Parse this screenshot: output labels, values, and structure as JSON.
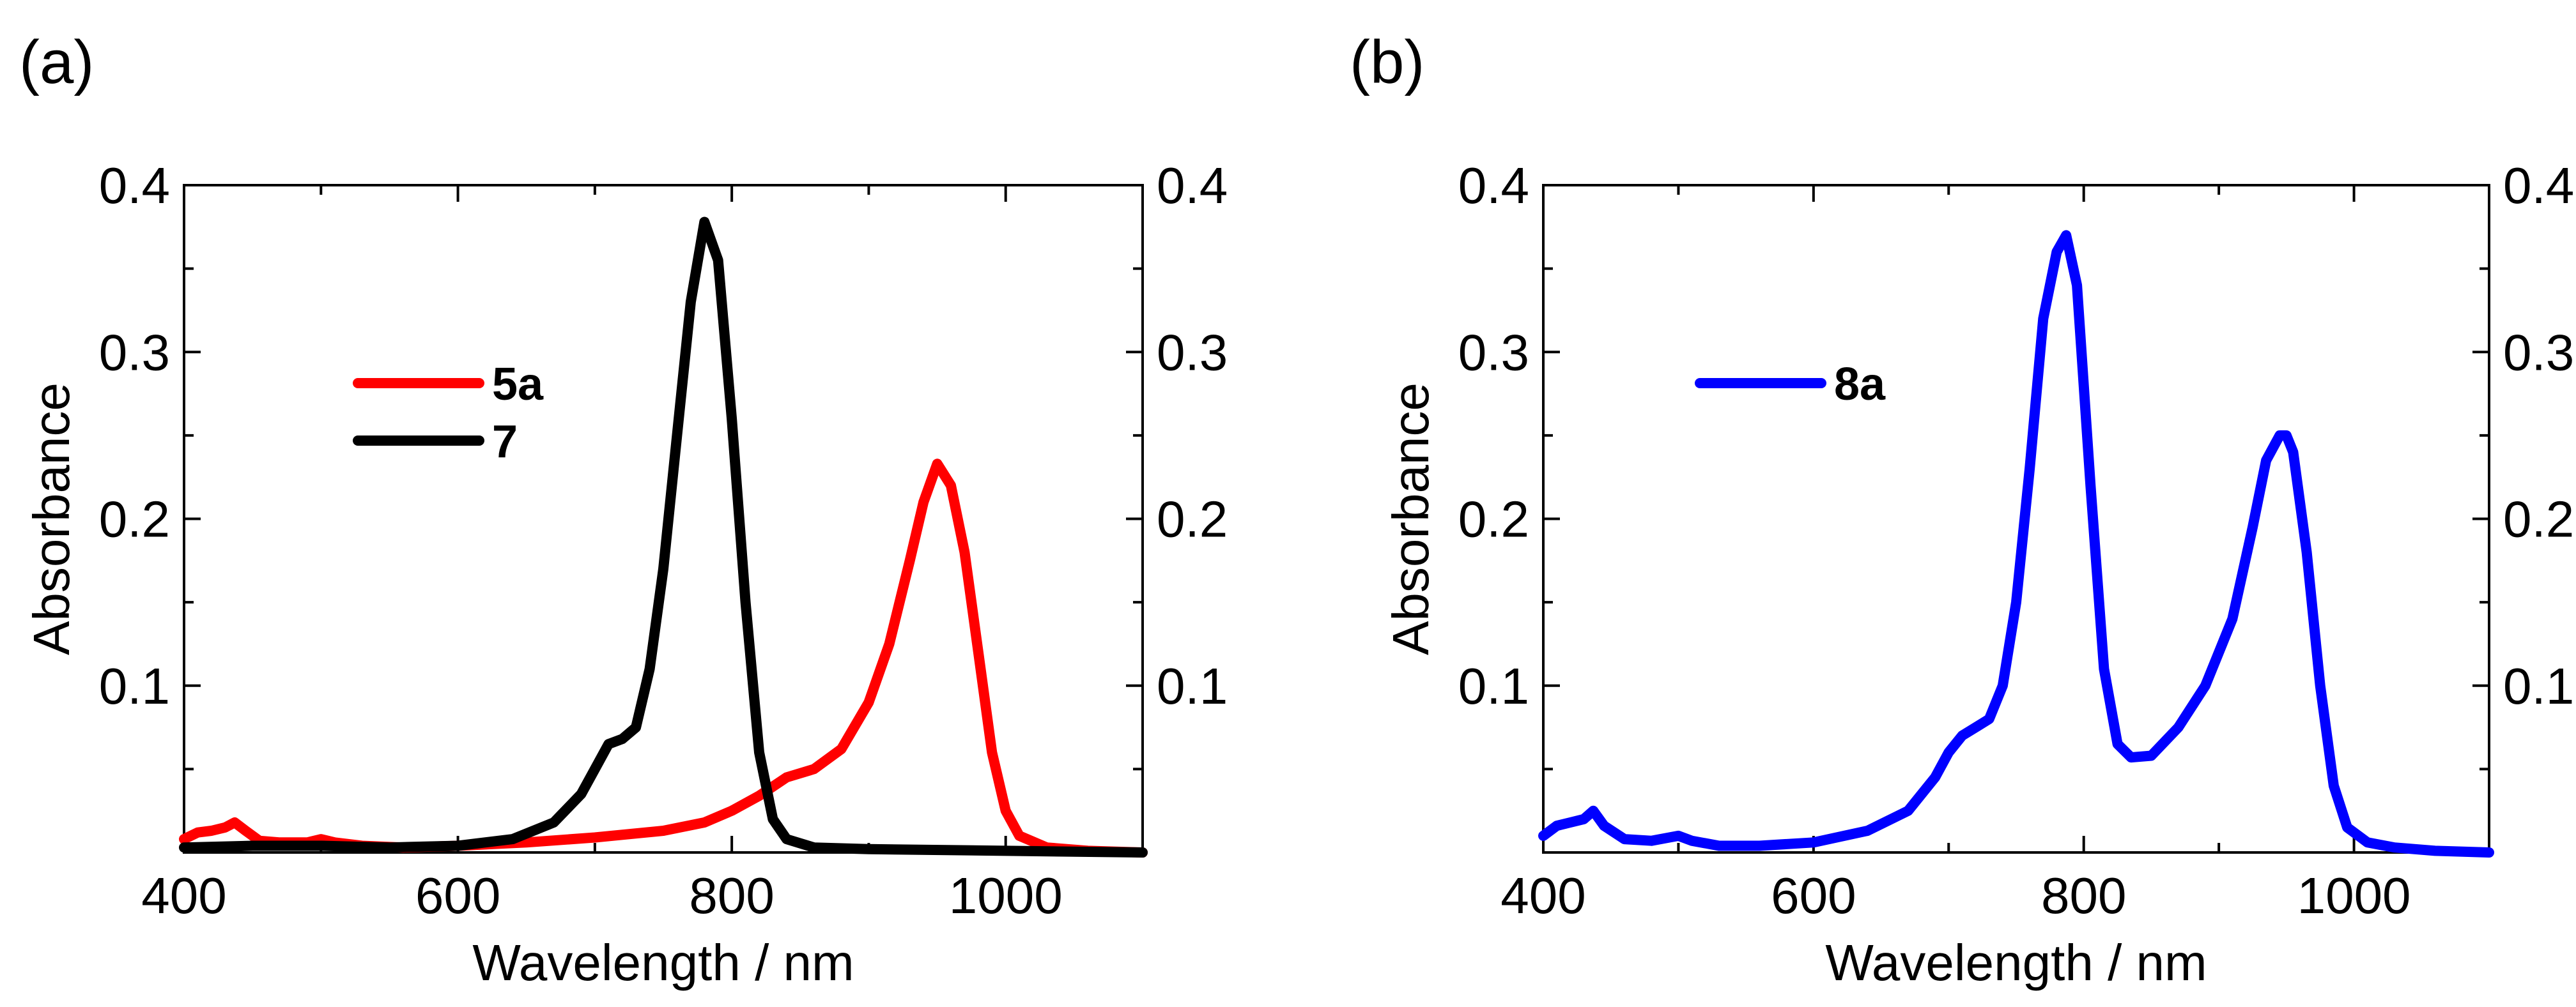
{
  "chart_data": [
    {
      "panel": "(a)",
      "type": "line",
      "xlabel": "Wavelength / nm",
      "ylabel": "Absorbance",
      "xlim": [
        400,
        1100
      ],
      "ylim": [
        0,
        0.4
      ],
      "xticks": [
        "400",
        "600",
        "800",
        "1000"
      ],
      "yticks_left": [
        "0.1",
        "0.2",
        "0.3",
        "0.4"
      ],
      "yticks_right": [
        "0.1",
        "0.2",
        "0.3",
        "0.4"
      ],
      "series": [
        {
          "name": "5a",
          "color": "#ff0000",
          "x": [
            400,
            410,
            420,
            430,
            437,
            445,
            455,
            470,
            490,
            500,
            510,
            530,
            560,
            600,
            650,
            700,
            750,
            780,
            800,
            820,
            840,
            860,
            880,
            900,
            915,
            930,
            940,
            950,
            960,
            970,
            980,
            990,
            1000,
            1010,
            1030,
            1060,
            1100
          ],
          "y": [
            0.008,
            0.012,
            0.013,
            0.015,
            0.018,
            0.013,
            0.007,
            0.006,
            0.006,
            0.008,
            0.006,
            0.004,
            0.003,
            0.004,
            0.006,
            0.009,
            0.013,
            0.018,
            0.025,
            0.034,
            0.045,
            0.05,
            0.062,
            0.09,
            0.125,
            0.175,
            0.21,
            0.233,
            0.22,
            0.18,
            0.12,
            0.06,
            0.025,
            0.01,
            0.003,
            0.001,
            0.0
          ]
        },
        {
          "name": "7",
          "color": "#000000",
          "x": [
            400,
            450,
            500,
            550,
            600,
            640,
            670,
            690,
            700,
            710,
            720,
            730,
            740,
            750,
            760,
            770,
            780,
            790,
            800,
            810,
            820,
            830,
            840,
            860,
            900,
            1000,
            1100
          ],
          "y": [
            0.003,
            0.004,
            0.004,
            0.003,
            0.004,
            0.008,
            0.018,
            0.035,
            0.05,
            0.065,
            0.068,
            0.075,
            0.11,
            0.17,
            0.25,
            0.33,
            0.378,
            0.355,
            0.26,
            0.15,
            0.06,
            0.02,
            0.008,
            0.003,
            0.002,
            0.001,
            0.0
          ]
        }
      ]
    },
    {
      "panel": "(b)",
      "type": "line",
      "xlabel": "Wavelength / nm",
      "ylabel": "Absorbance",
      "xlim": [
        400,
        1100
      ],
      "ylim": [
        0,
        0.4
      ],
      "xticks": [
        "400",
        "600",
        "800",
        "1000"
      ],
      "yticks_left": [
        "0.1",
        "0.2",
        "0.3",
        "0.4"
      ],
      "yticks_right": [
        "0.1",
        "0.2",
        "0.3",
        "0.4"
      ],
      "series": [
        {
          "name": "8a",
          "color": "#0000ff",
          "x": [
            400,
            410,
            420,
            430,
            437,
            445,
            460,
            480,
            500,
            510,
            530,
            560,
            600,
            640,
            670,
            690,
            700,
            710,
            720,
            730,
            740,
            750,
            760,
            770,
            780,
            787,
            795,
            805,
            815,
            825,
            835,
            850,
            870,
            890,
            910,
            925,
            935,
            945,
            950,
            955,
            965,
            975,
            985,
            995,
            1010,
            1030,
            1060,
            1100
          ],
          "y": [
            0.01,
            0.016,
            0.018,
            0.02,
            0.025,
            0.016,
            0.008,
            0.007,
            0.01,
            0.007,
            0.004,
            0.004,
            0.006,
            0.013,
            0.025,
            0.045,
            0.06,
            0.07,
            0.075,
            0.08,
            0.1,
            0.15,
            0.23,
            0.32,
            0.36,
            0.37,
            0.34,
            0.22,
            0.11,
            0.065,
            0.057,
            0.058,
            0.075,
            0.1,
            0.14,
            0.195,
            0.235,
            0.25,
            0.25,
            0.24,
            0.18,
            0.1,
            0.04,
            0.015,
            0.006,
            0.003,
            0.001,
            0.0
          ]
        }
      ]
    }
  ]
}
